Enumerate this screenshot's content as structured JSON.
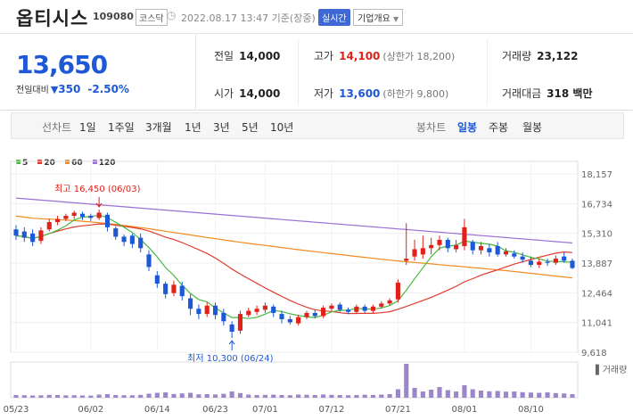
{
  "header": {
    "name": "옵티시스",
    "code": "109080",
    "market": "코스닥",
    "timestamp": "2022.08.17 13:47 기준(장중)",
    "realtime": "실시간",
    "overview": "기업개요"
  },
  "quote": {
    "price": "13,650",
    "change_label": "전일대비",
    "change": "350",
    "rate": "-2.50%",
    "prev_label": "전일",
    "prev": "14,000",
    "open_label": "시가",
    "open": "14,000",
    "high_label": "고가",
    "high": "14,100",
    "upper_limit": "(상한가 18,200)",
    "low_label": "저가",
    "low": "13,600",
    "lower_limit": "(하한가 9,800)",
    "volume_label": "거래량",
    "volume": "23,122",
    "amount_label": "거래대금",
    "amount": "318 백만"
  },
  "controls": {
    "line_label": "선차트",
    "line_periods": [
      "1일",
      "1주일",
      "3개월",
      "1년",
      "3년",
      "5년",
      "10년"
    ],
    "candle_label": "봉차트",
    "candle_periods": [
      "일봉",
      "주봉",
      "월봉"
    ],
    "selected_candle": "일봉"
  },
  "colors": {
    "up": "#e0221b",
    "down": "#1f58d6",
    "ma5": "#48b83f",
    "ma20": "#e03b2e",
    "ma60": "#f08b21",
    "ma120": "#9b6fd6",
    "volume": "#9b86c9"
  },
  "chart_data": {
    "type": "candlestick",
    "legend": [
      "5",
      "20",
      "60",
      "120"
    ],
    "y_ticks": [
      "18,157",
      "16,734",
      "15,310",
      "13,887",
      "12,464",
      "11,041",
      "9,618"
    ],
    "ylim": [
      9618,
      18157
    ],
    "x_ticks": [
      "05/23",
      "06/02",
      "06/14",
      "06/23",
      "07/01",
      "07/12",
      "07/21",
      "08/01",
      "08/10"
    ],
    "annotations": {
      "high": "최고 16,450 (06/03)",
      "low": "최저 10,300 (06/24)"
    },
    "volume_label": "거래량",
    "candles": [
      {
        "o": 15500,
        "c": 15200,
        "h": 15700,
        "l": 15000
      },
      {
        "o": 15400,
        "c": 15100,
        "h": 15600,
        "l": 14900
      },
      {
        "o": 15300,
        "c": 14900,
        "h": 15500,
        "l": 14700
      },
      {
        "o": 14950,
        "c": 15450,
        "h": 15600,
        "l": 14800
      },
      {
        "o": 15500,
        "c": 15850,
        "h": 16000,
        "l": 15400
      },
      {
        "o": 15850,
        "c": 16000,
        "h": 16150,
        "l": 15700
      },
      {
        "o": 16000,
        "c": 16150,
        "h": 16250,
        "l": 15900
      },
      {
        "o": 16150,
        "c": 16300,
        "h": 16400,
        "l": 16000
      },
      {
        "o": 16250,
        "c": 16100,
        "h": 16350,
        "l": 15950
      },
      {
        "o": 16150,
        "c": 16050,
        "h": 16250,
        "l": 15900
      },
      {
        "o": 16050,
        "c": 16300,
        "h": 16450,
        "l": 15950
      },
      {
        "o": 16200,
        "c": 15600,
        "h": 16300,
        "l": 15400
      },
      {
        "o": 15550,
        "c": 15150,
        "h": 15650,
        "l": 15000
      },
      {
        "o": 15150,
        "c": 14900,
        "h": 15250,
        "l": 14700
      },
      {
        "o": 15200,
        "c": 14800,
        "h": 15300,
        "l": 14600
      },
      {
        "o": 15100,
        "c": 14600,
        "h": 15300,
        "l": 14400
      },
      {
        "o": 14300,
        "c": 13700,
        "h": 14500,
        "l": 13500
      },
      {
        "o": 13300,
        "c": 12900,
        "h": 13500,
        "l": 12700
      },
      {
        "o": 12900,
        "c": 12400,
        "h": 13000,
        "l": 12200
      },
      {
        "o": 12450,
        "c": 12850,
        "h": 13050,
        "l": 12300
      },
      {
        "o": 12800,
        "c": 12300,
        "h": 13000,
        "l": 12100
      },
      {
        "o": 12200,
        "c": 11700,
        "h": 12400,
        "l": 11400
      },
      {
        "o": 11700,
        "c": 11450,
        "h": 11900,
        "l": 11200
      },
      {
        "o": 11450,
        "c": 11850,
        "h": 12000,
        "l": 11300
      },
      {
        "o": 11850,
        "c": 11400,
        "h": 12000,
        "l": 11200
      },
      {
        "o": 11500,
        "c": 11100,
        "h": 11700,
        "l": 10900
      },
      {
        "o": 10950,
        "c": 10600,
        "h": 11100,
        "l": 10300
      },
      {
        "o": 10650,
        "c": 11450,
        "h": 11600,
        "l": 10500
      },
      {
        "o": 11400,
        "c": 11600,
        "h": 11750,
        "l": 11300
      },
      {
        "o": 11550,
        "c": 11700,
        "h": 11850,
        "l": 11400
      },
      {
        "o": 11650,
        "c": 11850,
        "h": 12000,
        "l": 11500
      },
      {
        "o": 11800,
        "c": 11500,
        "h": 11900,
        "l": 11300
      },
      {
        "o": 11450,
        "c": 11200,
        "h": 11600,
        "l": 11000
      },
      {
        "o": 11200,
        "c": 11050,
        "h": 11350,
        "l": 10950
      },
      {
        "o": 11000,
        "c": 11300,
        "h": 11400,
        "l": 10900
      },
      {
        "o": 11300,
        "c": 11500,
        "h": 11600,
        "l": 11200
      },
      {
        "o": 11500,
        "c": 11350,
        "h": 11650,
        "l": 11250
      },
      {
        "o": 11350,
        "c": 11750,
        "h": 11850,
        "l": 11250
      },
      {
        "o": 11700,
        "c": 11850,
        "h": 11950,
        "l": 11600
      },
      {
        "o": 11900,
        "c": 11650,
        "h": 12000,
        "l": 11550
      },
      {
        "o": 11650,
        "c": 11550,
        "h": 11750,
        "l": 11450
      },
      {
        "o": 11550,
        "c": 11800,
        "h": 11900,
        "l": 11450
      },
      {
        "o": 11800,
        "c": 11600,
        "h": 11900,
        "l": 11500
      },
      {
        "o": 11600,
        "c": 11800,
        "h": 11900,
        "l": 11500
      },
      {
        "o": 11800,
        "c": 11950,
        "h": 12050,
        "l": 11700
      },
      {
        "o": 11950,
        "c": 12100,
        "h": 12200,
        "l": 11850
      },
      {
        "o": 12150,
        "c": 12950,
        "h": 13100,
        "l": 12000
      },
      {
        "o": 14000,
        "c": 14100,
        "h": 15800,
        "l": 13800
      },
      {
        "o": 14200,
        "c": 14550,
        "h": 15000,
        "l": 14000
      },
      {
        "o": 14300,
        "c": 14600,
        "h": 15200,
        "l": 14100
      },
      {
        "o": 14600,
        "c": 14750,
        "h": 15100,
        "l": 14300
      },
      {
        "o": 14750,
        "c": 15000,
        "h": 15200,
        "l": 14500
      },
      {
        "o": 15000,
        "c": 14600,
        "h": 15100,
        "l": 14400
      },
      {
        "o": 14550,
        "c": 14750,
        "h": 15000,
        "l": 14400
      },
      {
        "o": 14700,
        "c": 15600,
        "h": 16000,
        "l": 14500
      },
      {
        "o": 14900,
        "c": 14500,
        "h": 15000,
        "l": 14300
      },
      {
        "o": 14500,
        "c": 14700,
        "h": 14900,
        "l": 14300
      },
      {
        "o": 14600,
        "c": 14400,
        "h": 14800,
        "l": 14200
      },
      {
        "o": 14700,
        "c": 14300,
        "h": 14900,
        "l": 14200
      },
      {
        "o": 14300,
        "c": 14450,
        "h": 14600,
        "l": 14200
      },
      {
        "o": 14350,
        "c": 14200,
        "h": 14500,
        "l": 14100
      },
      {
        "o": 14200,
        "c": 14050,
        "h": 14400,
        "l": 13900
      },
      {
        "o": 14000,
        "c": 13800,
        "h": 14200,
        "l": 13700
      },
      {
        "o": 13800,
        "c": 13950,
        "h": 14100,
        "l": 13650
      },
      {
        "o": 13950,
        "c": 13900,
        "h": 14100,
        "l": 13750
      },
      {
        "o": 13900,
        "c": 14100,
        "h": 14250,
        "l": 13800
      },
      {
        "o": 14200,
        "c": 14000,
        "h": 14400,
        "l": 13900
      },
      {
        "o": 14000,
        "c": 13650,
        "h": 14100,
        "l": 13600
      }
    ],
    "volumes": [
      30,
      28,
      25,
      27,
      32,
      30,
      26,
      28,
      25,
      24,
      35,
      40,
      30,
      28,
      27,
      32,
      45,
      55,
      60,
      42,
      48,
      55,
      38,
      40,
      36,
      44,
      70,
      52,
      35,
      30,
      32,
      34,
      30,
      28,
      35,
      33,
      30,
      36,
      32,
      30,
      28,
      30,
      33,
      31,
      35,
      40,
      95,
      380,
      110,
      70,
      90,
      120,
      85,
      70,
      140,
      95,
      80,
      72,
      76,
      68,
      70,
      62,
      58,
      55,
      60,
      52,
      48,
      40
    ]
  }
}
